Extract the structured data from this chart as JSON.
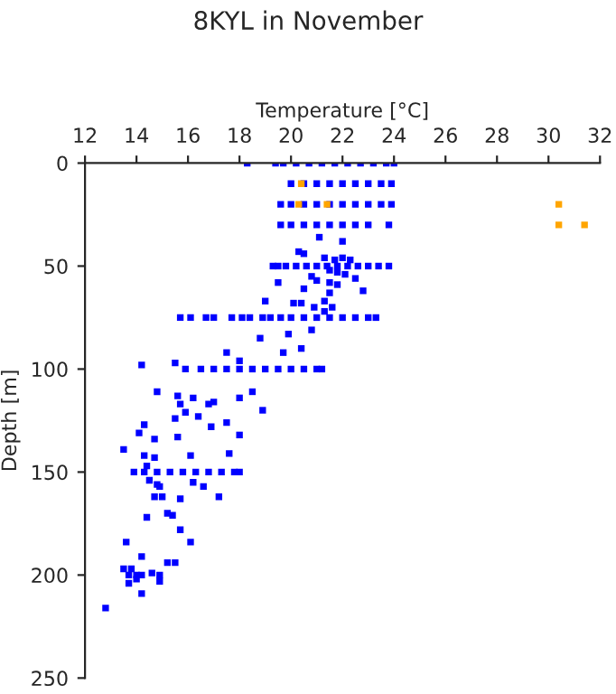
{
  "chart_data": {
    "type": "scatter",
    "title": "8KYL in November",
    "xlabel": "Temperature [°C]",
    "ylabel": "Depth [m]",
    "xlim": [
      12,
      32
    ],
    "xticks": [
      12,
      14,
      16,
      18,
      20,
      22,
      24,
      26,
      28,
      30,
      32
    ],
    "ylim": [
      250,
      0
    ],
    "yticks": [
      0,
      50,
      100,
      150,
      200,
      250
    ],
    "grid": false,
    "legend": false,
    "marker": "square",
    "series": [
      {
        "color": "#0000ff",
        "x": [
          18.3,
          19.4,
          19.7,
          20.2,
          20.7,
          21.2,
          21.7,
          22.2,
          22.7,
          23.2,
          23.7,
          24.0,
          20.0,
          20.5,
          21.0,
          21.5,
          22.0,
          22.5,
          23.0,
          23.5,
          23.9,
          19.6,
          20.0,
          20.5,
          21.0,
          21.5,
          22.0,
          22.5,
          23.0,
          23.5,
          23.9,
          19.6,
          20.0,
          20.5,
          21.0,
          21.5,
          22.0,
          22.5,
          23.0,
          23.8,
          21.1,
          22.0,
          20.3,
          20.5,
          21.3,
          22.0,
          21.7,
          22.3,
          19.3,
          19.5,
          19.8,
          20.2,
          20.6,
          21.0,
          21.4,
          21.8,
          22.2,
          22.6,
          23.0,
          23.4,
          23.8,
          21.5,
          21.8,
          22.1,
          20.8,
          21.0,
          22.5,
          19.5,
          21.5,
          21.8,
          20.5,
          22.8,
          21.5,
          19.0,
          20.1,
          20.4,
          21.3,
          20.9,
          21.6,
          21.3,
          15.7,
          16.1,
          16.7,
          17.0,
          17.7,
          18.1,
          18.4,
          18.9,
          19.2,
          19.6,
          20.0,
          20.5,
          21.0,
          21.5,
          22.0,
          22.5,
          23.0,
          23.3,
          20.8,
          19.9,
          18.8,
          20.4,
          19.7,
          17.5,
          18.0,
          14.2,
          15.5,
          15.9,
          16.5,
          17.0,
          17.5,
          18.0,
          18.5,
          19.0,
          19.5,
          20.0,
          20.5,
          21.0,
          21.2,
          14.8,
          15.6,
          15.7,
          16.2,
          16.8,
          17.0,
          18.0,
          18.5,
          18.9,
          15.9,
          15.5,
          16.4,
          16.9,
          17.5,
          18.0,
          15.6,
          14.7,
          14.3,
          14.1,
          13.5,
          14.3,
          14.7,
          14.4,
          16.1,
          17.6,
          13.9,
          14.3,
          14.8,
          15.3,
          15.8,
          16.3,
          16.8,
          17.3,
          17.8,
          18.0,
          14.5,
          14.8,
          14.9,
          16.2,
          16.6,
          14.7,
          15.0,
          15.7,
          17.2,
          14.4,
          15.2,
          15.4,
          15.7,
          16.1,
          13.6,
          14.2,
          15.2,
          15.5,
          13.5,
          13.8,
          13.7,
          14.0,
          14.2,
          14.6,
          14.9,
          13.7,
          14.0,
          14.9,
          14.2,
          12.8
        ],
        "values": [
          0,
          0,
          0,
          0,
          0,
          0,
          0,
          0,
          0,
          0,
          0,
          0,
          10,
          10,
          10,
          10,
          10,
          10,
          10,
          10,
          10,
          20,
          20,
          20,
          20,
          20,
          20,
          20,
          20,
          20,
          20,
          30,
          30,
          30,
          30,
          30,
          30,
          30,
          30,
          30,
          36,
          38,
          43,
          44,
          46,
          46,
          47,
          47,
          50,
          50,
          50,
          50,
          50,
          50,
          50,
          50,
          50,
          50,
          50,
          50,
          50,
          52,
          53,
          54,
          55,
          57,
          56,
          58,
          58,
          59,
          61,
          62,
          63,
          67,
          68,
          68,
          67,
          70,
          70,
          72,
          75,
          75,
          75,
          75,
          75,
          75,
          75,
          75,
          75,
          75,
          75,
          75,
          75,
          75,
          75,
          75,
          75,
          75,
          81,
          83,
          85,
          90,
          92,
          92,
          96,
          98,
          97,
          100,
          100,
          100,
          100,
          100,
          100,
          100,
          100,
          100,
          100,
          100,
          100,
          111,
          113,
          117,
          114,
          117,
          116,
          114,
          111,
          120,
          121,
          124,
          123,
          128,
          126,
          132,
          133,
          134,
          127,
          131,
          139,
          142,
          143,
          147,
          142,
          141,
          150,
          150,
          150,
          150,
          150,
          150,
          150,
          150,
          150,
          150,
          154,
          156,
          157,
          155,
          157,
          162,
          162,
          163,
          162,
          172,
          170,
          171,
          178,
          184,
          184,
          191,
          194,
          194,
          197,
          197,
          200,
          200,
          200,
          199,
          200,
          204,
          202,
          203,
          209,
          216
        ]
      },
      {
        "color": "#ffa500",
        "x": [
          20.4,
          20.3,
          21.4,
          30.4,
          30.4,
          31.4
        ],
        "values": [
          10,
          20,
          20,
          20,
          30,
          30
        ]
      }
    ]
  }
}
